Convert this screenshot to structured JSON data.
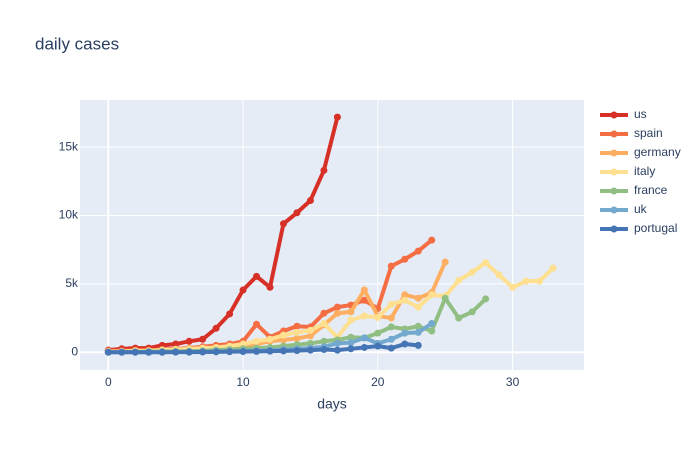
{
  "chart_data": {
    "type": "line",
    "title": "daily cases",
    "x_label": "days",
    "xlim": [
      -2.1,
      35.3
    ],
    "xticks": [
      0,
      10,
      20,
      30
    ],
    "ylim": [
      -1300,
      18450
    ],
    "yticks": [
      0,
      {
        "value": 5000,
        "label": "5k"
      },
      {
        "value": 10000,
        "label": "10k"
      },
      {
        "value": 15000,
        "label": "15k"
      }
    ],
    "grid": true,
    "legend": "right",
    "series": [
      {
        "name": "us",
        "color": "#d73027",
        "x": [
          0,
          1,
          2,
          3,
          4,
          5,
          6,
          7,
          8,
          9,
          10,
          11,
          12,
          13,
          14,
          15,
          16,
          17
        ],
        "values": [
          150,
          250,
          300,
          300,
          500,
          600,
          800,
          950,
          1750,
          2800,
          4550,
          5550,
          4750,
          9400,
          10200,
          11100,
          13300,
          17200
        ]
      },
      {
        "name": "spain",
        "color": "#f46d43",
        "x": [
          0,
          1,
          2,
          3,
          4,
          5,
          6,
          7,
          8,
          9,
          10,
          11,
          12,
          13,
          14,
          15,
          16,
          17,
          18,
          19,
          20,
          21,
          22,
          23,
          24
        ],
        "values": [
          100,
          100,
          150,
          150,
          200,
          250,
          300,
          400,
          500,
          600,
          800,
          2050,
          1100,
          1550,
          1900,
          1850,
          2850,
          3300,
          3450,
          3800,
          3200,
          6300,
          6800,
          7400,
          8200
        ]
      },
      {
        "name": "germany",
        "color": "#fdae61",
        "x": [
          0,
          1,
          2,
          3,
          4,
          5,
          6,
          7,
          8,
          9,
          10,
          11,
          12,
          13,
          14,
          15,
          16,
          17,
          18,
          19,
          20,
          21,
          22,
          23,
          24,
          25
        ],
        "values": [
          50,
          50,
          100,
          100,
          150,
          150,
          200,
          250,
          300,
          350,
          450,
          600,
          800,
          900,
          1000,
          1200,
          2000,
          2850,
          2950,
          4550,
          2650,
          2500,
          4200,
          3950,
          4350,
          6600
        ]
      },
      {
        "name": "italy",
        "color": "#fee090",
        "x": [
          0,
          1,
          2,
          3,
          4,
          5,
          6,
          7,
          8,
          9,
          10,
          11,
          12,
          13,
          14,
          15,
          16,
          17,
          18,
          19,
          20,
          21,
          22,
          23,
          24,
          25,
          26,
          27,
          28,
          29,
          30,
          31,
          32,
          33
        ],
        "values": [
          50,
          50,
          100,
          100,
          150,
          200,
          250,
          300,
          350,
          450,
          600,
          800,
          950,
          1250,
          1450,
          1600,
          2100,
          1100,
          2350,
          2650,
          2550,
          3500,
          3800,
          3300,
          4200,
          4100,
          5250,
          5850,
          6550,
          5650,
          4750,
          5200,
          5200,
          6150
        ]
      },
      {
        "name": "france",
        "color": "#91bf83",
        "x": [
          0,
          1,
          2,
          3,
          4,
          5,
          6,
          7,
          8,
          9,
          10,
          11,
          12,
          13,
          14,
          15,
          16,
          17,
          18,
          19,
          20,
          21,
          22,
          23,
          24,
          25,
          26,
          27,
          28
        ],
        "values": [
          10,
          20,
          30,
          40,
          50,
          60,
          80,
          100,
          150,
          200,
          250,
          300,
          350,
          450,
          550,
          650,
          800,
          900,
          1100,
          1050,
          1400,
          1850,
          1700,
          1900,
          1550,
          3950,
          2500,
          2950,
          3900
        ]
      },
      {
        "name": "uk",
        "color": "#74a9cf",
        "x": [
          0,
          1,
          2,
          3,
          4,
          5,
          6,
          7,
          8,
          9,
          10,
          11,
          12,
          13,
          14,
          15,
          16,
          17,
          18,
          19,
          20,
          21,
          22,
          23,
          24
        ],
        "values": [
          5,
          5,
          10,
          10,
          15,
          20,
          30,
          40,
          50,
          60,
          80,
          100,
          150,
          200,
          250,
          300,
          400,
          650,
          700,
          1050,
          650,
          950,
          1400,
          1450,
          2100
        ]
      },
      {
        "name": "portugal",
        "color": "#4575b4",
        "x": [
          0,
          1,
          2,
          3,
          4,
          5,
          6,
          7,
          8,
          9,
          10,
          11,
          12,
          13,
          14,
          15,
          16,
          17,
          18,
          19,
          20,
          21,
          22,
          23
        ],
        "values": [
          0,
          0,
          0,
          0,
          0,
          5,
          10,
          20,
          30,
          40,
          50,
          60,
          80,
          100,
          120,
          150,
          200,
          150,
          250,
          350,
          450,
          300,
          600,
          500
        ]
      }
    ]
  }
}
